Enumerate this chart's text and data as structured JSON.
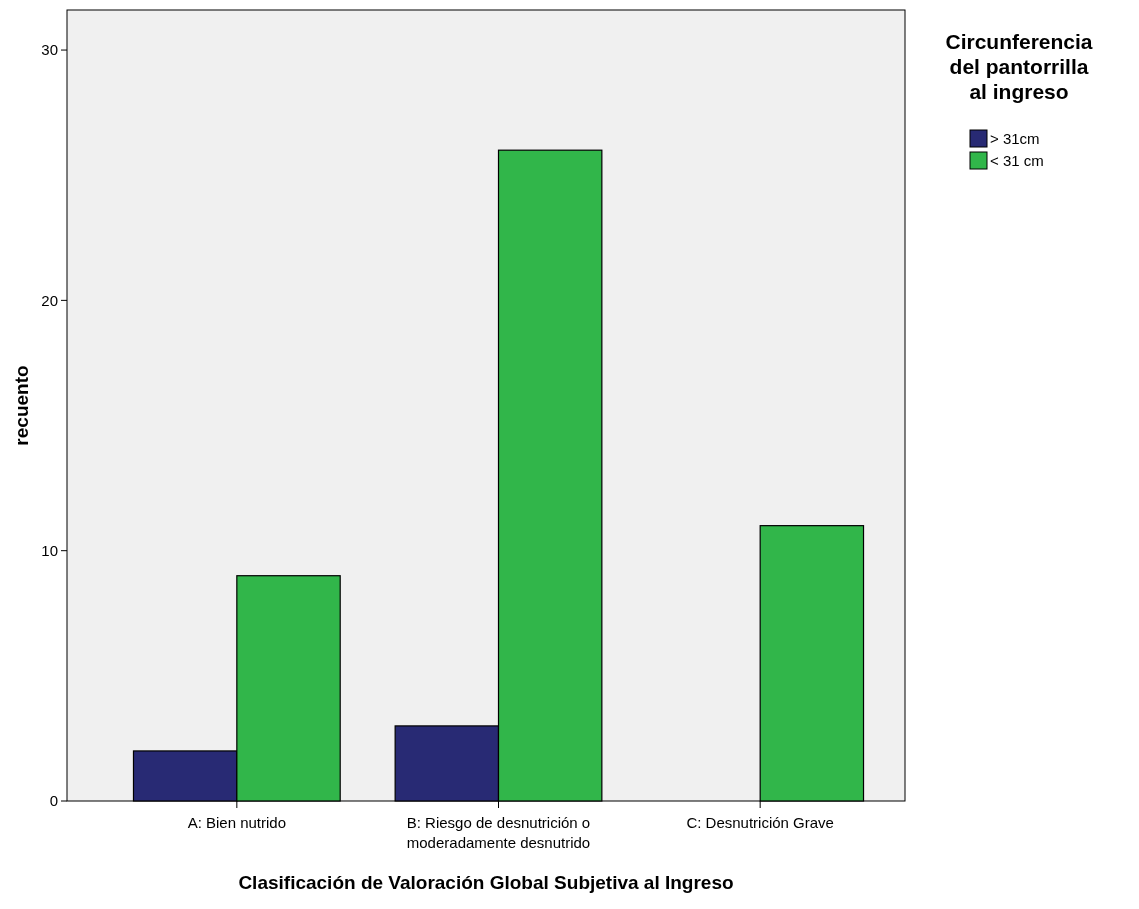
{
  "chart_data": {
    "type": "bar",
    "xlabel": "Clasificación de Valoración Global Subjetiva al Ingreso",
    "ylabel": "recuento",
    "legend_title": "Circunferencia del pantorrilla al ingreso",
    "legend": "top right",
    "categories": [
      "A: Bien nutrido",
      "B: Riesgo de desnutrición o moderadamente desnutrido",
      "C: Desnutrición Grave"
    ],
    "series": [
      {
        "name": "> 31cm",
        "color": "#282a74",
        "values": [
          2,
          3,
          null
        ]
      },
      {
        "name": "< 31 cm",
        "color": "#31b64a",
        "values": [
          9,
          26,
          11
        ]
      }
    ],
    "ylim": [
      0,
      31.6
    ],
    "yticks": [
      0,
      10,
      20,
      30
    ],
    "grid": false
  }
}
